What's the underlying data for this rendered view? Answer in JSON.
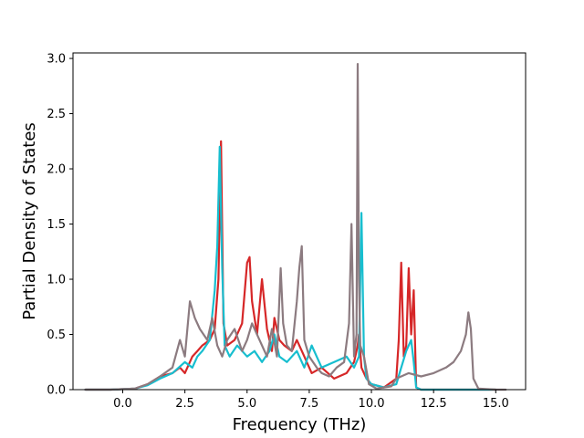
{
  "chart_data": {
    "type": "line",
    "title": "",
    "xlabel": "Frequency (THz)",
    "ylabel": "Partial Density of States",
    "xlim": [
      -2.0,
      16.2
    ],
    "ylim": [
      0.0,
      3.05
    ],
    "xticks": [
      0.0,
      2.5,
      5.0,
      7.5,
      10.0,
      12.5,
      15.0
    ],
    "xtick_labels": [
      "0.0",
      "2.5",
      "5.0",
      "7.5",
      "10.0",
      "12.5",
      "15.0"
    ],
    "yticks": [
      0.0,
      0.5,
      1.0,
      1.5,
      2.0,
      2.5,
      3.0
    ],
    "ytick_labels": [
      "0.0",
      "0.5",
      "1.0",
      "1.5",
      "2.0",
      "2.5",
      "3.0"
    ],
    "grid": false,
    "legend": "none",
    "series": [
      {
        "color": "#d62728",
        "x": [
          -1.5,
          -0.5,
          0.5,
          1.0,
          1.5,
          2.0,
          2.3,
          2.5,
          2.8,
          3.0,
          3.2,
          3.5,
          3.7,
          3.85,
          3.95,
          4.05,
          4.2,
          4.5,
          4.8,
          5.0,
          5.1,
          5.2,
          5.4,
          5.6,
          5.8,
          6.0,
          6.1,
          6.3,
          6.5,
          6.8,
          7.0,
          7.3,
          7.6,
          8.0,
          8.5,
          9.0,
          9.3,
          9.45,
          9.5,
          9.6,
          9.8,
          10.0,
          10.5,
          11.0,
          11.1,
          11.2,
          11.3,
          11.4,
          11.5,
          11.6,
          11.7,
          11.8,
          12.0,
          12.5,
          13.0,
          14.0,
          15.0
        ],
        "y": [
          0.0,
          0.0,
          0.01,
          0.05,
          0.12,
          0.15,
          0.2,
          0.15,
          0.3,
          0.35,
          0.4,
          0.45,
          0.55,
          1.0,
          2.25,
          0.6,
          0.4,
          0.45,
          0.6,
          1.15,
          1.2,
          0.8,
          0.5,
          1.0,
          0.55,
          0.35,
          0.65,
          0.45,
          0.4,
          0.35,
          0.45,
          0.3,
          0.15,
          0.2,
          0.1,
          0.15,
          0.25,
          0.4,
          0.5,
          0.2,
          0.1,
          0.05,
          0.02,
          0.1,
          0.45,
          1.15,
          0.3,
          0.4,
          1.1,
          0.5,
          0.9,
          0.02,
          0.0,
          0.0,
          0.0,
          0.0,
          0.0
        ]
      },
      {
        "color": "#17becf",
        "x": [
          -1.5,
          -0.5,
          0.5,
          1.0,
          1.5,
          2.0,
          2.5,
          2.8,
          3.0,
          3.2,
          3.5,
          3.7,
          3.8,
          3.9,
          4.0,
          4.1,
          4.3,
          4.6,
          5.0,
          5.3,
          5.6,
          5.9,
          6.1,
          6.3,
          6.6,
          7.0,
          7.3,
          7.6,
          8.0,
          8.5,
          9.0,
          9.3,
          9.5,
          9.6,
          9.7,
          9.8,
          10.0,
          10.5,
          11.0,
          11.2,
          11.4,
          11.6,
          11.7,
          11.8,
          12.0,
          13.0,
          15.0
        ],
        "y": [
          0.0,
          0.0,
          0.01,
          0.04,
          0.1,
          0.15,
          0.25,
          0.2,
          0.3,
          0.35,
          0.45,
          0.9,
          1.3,
          2.2,
          1.1,
          0.4,
          0.3,
          0.4,
          0.3,
          0.35,
          0.25,
          0.35,
          0.5,
          0.3,
          0.25,
          0.35,
          0.2,
          0.4,
          0.2,
          0.25,
          0.3,
          0.2,
          0.3,
          1.6,
          0.3,
          0.1,
          0.05,
          0.02,
          0.05,
          0.2,
          0.35,
          0.45,
          0.25,
          0.02,
          0.0,
          0.0,
          0.0
        ]
      },
      {
        "color": "#8c7b80",
        "x": [
          -1.5,
          -0.5,
          0.5,
          1.0,
          1.5,
          2.0,
          2.3,
          2.5,
          2.7,
          2.9,
          3.1,
          3.4,
          3.6,
          3.8,
          4.0,
          4.2,
          4.5,
          4.8,
          5.0,
          5.2,
          5.5,
          5.8,
          6.0,
          6.2,
          6.35,
          6.45,
          6.6,
          6.8,
          7.0,
          7.1,
          7.2,
          7.3,
          7.5,
          7.8,
          8.0,
          8.3,
          8.6,
          8.9,
          9.1,
          9.2,
          9.3,
          9.4,
          9.45,
          9.5,
          9.55,
          9.7,
          9.9,
          10.2,
          10.5,
          10.8,
          11.0,
          11.5,
          12.0,
          12.5,
          13.0,
          13.3,
          13.6,
          13.8,
          13.9,
          14.0,
          14.1,
          14.3,
          15.0,
          15.4
        ],
        "y": [
          0.0,
          0.0,
          0.01,
          0.05,
          0.12,
          0.2,
          0.45,
          0.3,
          0.8,
          0.65,
          0.55,
          0.45,
          0.65,
          0.4,
          0.3,
          0.45,
          0.55,
          0.35,
          0.45,
          0.6,
          0.45,
          0.3,
          0.55,
          0.3,
          1.1,
          0.6,
          0.4,
          0.35,
          0.8,
          1.1,
          1.3,
          0.45,
          0.3,
          0.2,
          0.15,
          0.12,
          0.2,
          0.25,
          0.6,
          1.5,
          0.3,
          0.5,
          2.95,
          1.0,
          0.4,
          0.3,
          0.05,
          0.01,
          0.02,
          0.03,
          0.1,
          0.15,
          0.12,
          0.15,
          0.2,
          0.25,
          0.35,
          0.5,
          0.7,
          0.55,
          0.1,
          0.01,
          0.0,
          0.0
        ]
      }
    ]
  }
}
